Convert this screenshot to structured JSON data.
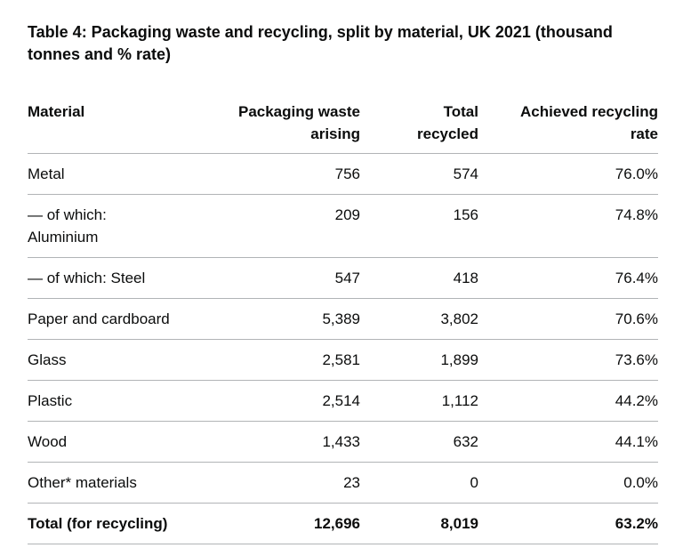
{
  "title": "Table 4: Packaging waste and recycling, split by material, UK 2021 (thousand tonnes and % rate)",
  "table": {
    "headers": [
      "Material",
      "Packaging waste arising",
      "Total recycled",
      "Achieved recycling rate"
    ],
    "rows": [
      [
        "Metal",
        "756",
        "574",
        "76.0%"
      ],
      [
        "— of which: Aluminium",
        "209",
        "156",
        "74.8%"
      ],
      [
        "— of which: Steel",
        "547",
        "418",
        "76.4%"
      ],
      [
        "Paper and cardboard",
        "5,389",
        "3,802",
        "70.6%"
      ],
      [
        "Glass",
        "2,581",
        "1,899",
        "73.6%"
      ],
      [
        "Plastic",
        "2,514",
        "1,112",
        "44.2%"
      ],
      [
        "Wood",
        "1,433",
        "632",
        "44.1%"
      ],
      [
        "Other* materials",
        "23",
        "0",
        "0.0%"
      ]
    ],
    "total": [
      "Total (for recycling)",
      "12,696",
      "8,019",
      "63.2%"
    ]
  }
}
